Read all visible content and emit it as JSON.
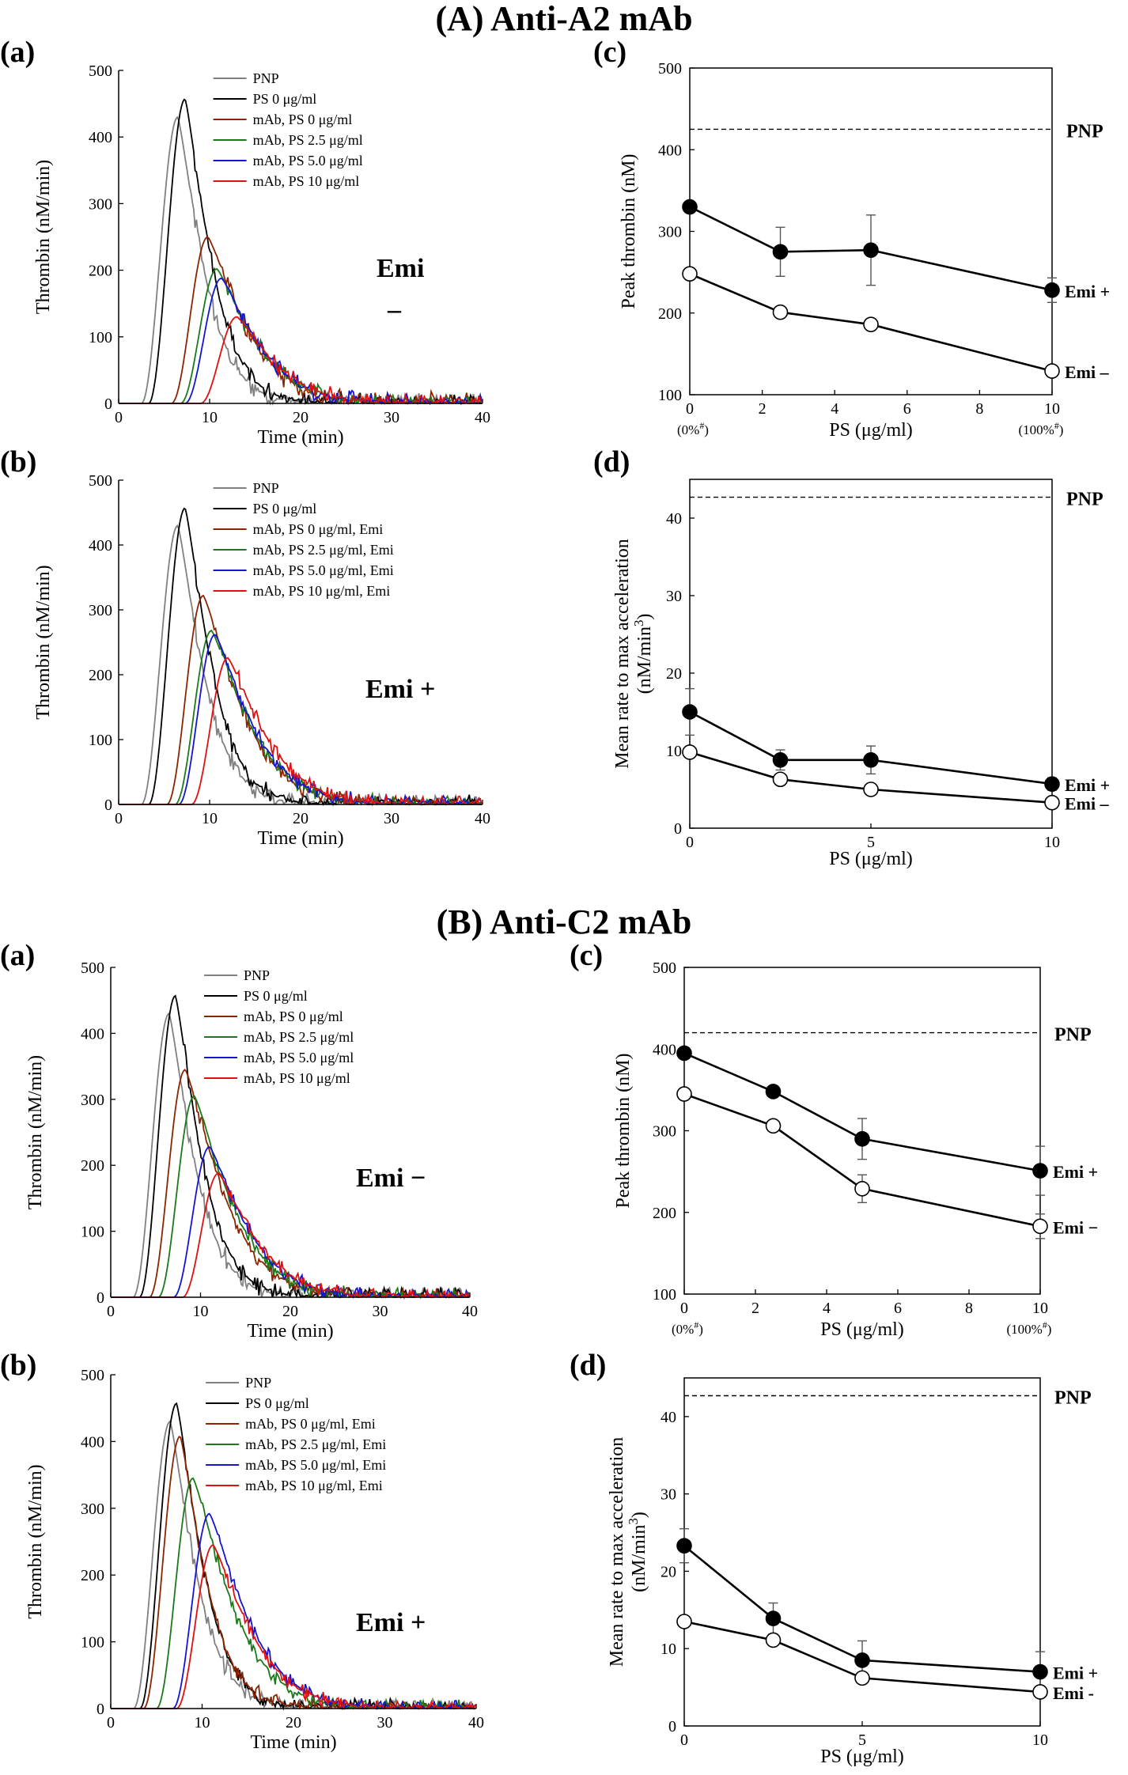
{
  "sections": [
    {
      "title": "(A) Anti-A2 mAb"
    },
    {
      "title": "(B) Anti-C2 mAb"
    }
  ],
  "chart_data": [
    {
      "id": "A-a",
      "panel_label": "(a)",
      "type": "line",
      "xlabel": "Time (min)",
      "ylabel": "Thrombin (nM/min)",
      "xlim": [
        0,
        40
      ],
      "ylim": [
        0,
        500
      ],
      "xticks": [
        0,
        10,
        20,
        30,
        40
      ],
      "yticks": [
        0,
        100,
        200,
        300,
        400,
        500
      ],
      "annotation": [
        "Emi",
        "–"
      ],
      "series": [
        {
          "name": "PNP",
          "color": "#808080",
          "tpeak": 6.5,
          "peak": 430,
          "noise": 18
        },
        {
          "name": "PS 0 μg/ml",
          "color": "#000000",
          "tpeak": 7.3,
          "peak": 457,
          "noise": 16
        },
        {
          "name": "mAb, PS 0 μg/ml",
          "color": "#8b2500",
          "tpeak": 9.8,
          "peak": 250,
          "noise": 18
        },
        {
          "name": "mAb, PS 2.5 μg/ml",
          "color": "#1a7a1a",
          "tpeak": 10.8,
          "peak": 202,
          "noise": 16
        },
        {
          "name": "mAb, PS 5.0 μg/ml",
          "color": "#1515d0",
          "tpeak": 11.3,
          "peak": 188,
          "noise": 15
        },
        {
          "name": "mAb, PS 10 μg/ml",
          "color": "#e01010",
          "tpeak": 13.0,
          "peak": 130,
          "noise": 14
        }
      ]
    },
    {
      "id": "A-b",
      "panel_label": "(b)",
      "type": "line",
      "xlabel": "Time (min)",
      "ylabel": "Thrombin (nM/min)",
      "xlim": [
        0,
        40
      ],
      "ylim": [
        0,
        500
      ],
      "xticks": [
        0,
        10,
        20,
        30,
        40
      ],
      "yticks": [
        0,
        100,
        200,
        300,
        400,
        500
      ],
      "annotation": [
        "Emi +"
      ],
      "series": [
        {
          "name": "PNP",
          "color": "#808080",
          "tpeak": 6.5,
          "peak": 430,
          "noise": 18
        },
        {
          "name": "PS 0 μg/ml",
          "color": "#000000",
          "tpeak": 7.3,
          "peak": 457,
          "noise": 16
        },
        {
          "name": "mAb, PS 0 μg/ml, Emi",
          "color": "#8b2500",
          "tpeak": 9.3,
          "peak": 322,
          "noise": 14
        },
        {
          "name": "mAb, PS 2.5 μg/ml, Emi",
          "color": "#1a7a1a",
          "tpeak": 10.2,
          "peak": 268,
          "noise": 14
        },
        {
          "name": "mAb, PS 5.0 μg/ml, Emi",
          "color": "#1515d0",
          "tpeak": 10.6,
          "peak": 262,
          "noise": 14
        },
        {
          "name": "mAb, PS 10 μg/ml, Emi",
          "color": "#e01010",
          "tpeak": 12.0,
          "peak": 226,
          "noise": 13
        }
      ]
    },
    {
      "id": "A-c",
      "panel_label": "(c)",
      "type": "line-errorbar",
      "xlabel": "PS (μg/ml)",
      "ylabel": "Peak thrombin (nM)",
      "xlim": [
        0,
        10
      ],
      "ylim": [
        100,
        500
      ],
      "xticks": [
        0,
        2,
        4,
        6,
        8,
        10
      ],
      "yticks": [
        100,
        200,
        300,
        400,
        500
      ],
      "x_notes": [
        "(0%#)",
        "(100%#)"
      ],
      "reference": {
        "label": "PNP",
        "value": 425
      },
      "series": [
        {
          "name": "Emi +",
          "filled": true,
          "x": [
            0,
            2.5,
            5,
            10
          ],
          "y": [
            330,
            275,
            277,
            228
          ],
          "err": [
            0,
            30,
            43,
            15
          ]
        },
        {
          "name": "Emi –",
          "filled": false,
          "x": [
            0,
            2.5,
            5,
            10
          ],
          "y": [
            248,
            201,
            186,
            129
          ],
          "err": [
            0,
            0,
            0,
            0
          ]
        }
      ]
    },
    {
      "id": "A-d",
      "panel_label": "(d)",
      "type": "line-errorbar",
      "xlabel": "PS (μg/ml)",
      "ylabel": "Mean rate to max acceleration",
      "ylabel2": "(nM/min3)",
      "xlim": [
        0,
        10
      ],
      "ylim": [
        0,
        45
      ],
      "xticks": [
        0,
        5,
        10
      ],
      "yticks": [
        0,
        10,
        20,
        30,
        40
      ],
      "reference": {
        "label": "PNP",
        "value": 42.7
      },
      "series": [
        {
          "name": "Emi +",
          "filled": true,
          "x": [
            0,
            2.5,
            5,
            10
          ],
          "y": [
            15.0,
            8.8,
            8.8,
            5.7
          ],
          "err": [
            3.0,
            1.3,
            1.8,
            0.8
          ]
        },
        {
          "name": "Emi –",
          "filled": false,
          "x": [
            0,
            2.5,
            5,
            10
          ],
          "y": [
            9.8,
            6.3,
            5.0,
            3.3
          ],
          "err": [
            0,
            0,
            0,
            0
          ]
        }
      ]
    },
    {
      "id": "B-a",
      "panel_label": "(a)",
      "type": "line",
      "xlabel": "Time (min)",
      "ylabel": "Thrombin (nM/min)",
      "xlim": [
        0,
        40
      ],
      "ylim": [
        0,
        500
      ],
      "xticks": [
        0,
        10,
        20,
        30,
        40
      ],
      "yticks": [
        0,
        100,
        200,
        300,
        400,
        500
      ],
      "annotation": [
        "Emi −"
      ],
      "series": [
        {
          "name": "PNP",
          "color": "#808080",
          "tpeak": 6.5,
          "peak": 430,
          "noise": 18
        },
        {
          "name": "PS 0 μg/ml",
          "color": "#000000",
          "tpeak": 7.2,
          "peak": 457,
          "noise": 16
        },
        {
          "name": "mAb, PS 0 μg/ml",
          "color": "#8b2500",
          "tpeak": 8.3,
          "peak": 345,
          "noise": 15
        },
        {
          "name": "mAb, PS 2.5 μg/ml",
          "color": "#1a7a1a",
          "tpeak": 9.3,
          "peak": 305,
          "noise": 14
        },
        {
          "name": "mAb, PS 5.0 μg/ml",
          "color": "#1515d0",
          "tpeak": 11.0,
          "peak": 228,
          "noise": 13
        },
        {
          "name": "mAb, PS 10 μg/ml",
          "color": "#e01010",
          "tpeak": 12.0,
          "peak": 188,
          "noise": 12
        }
      ]
    },
    {
      "id": "B-b",
      "panel_label": "(b)",
      "type": "line",
      "xlabel": "Time (min)",
      "ylabel": "Thrombin (nM/min)",
      "xlim": [
        0,
        40
      ],
      "ylim": [
        0,
        500
      ],
      "xticks": [
        0,
        10,
        20,
        30,
        40
      ],
      "yticks": [
        0,
        100,
        200,
        300,
        400,
        500
      ],
      "annotation": [
        "Emi +"
      ],
      "series": [
        {
          "name": "PNP",
          "color": "#808080",
          "tpeak": 6.5,
          "peak": 430,
          "noise": 18
        },
        {
          "name": "PS 0 μg/ml",
          "color": "#000000",
          "tpeak": 7.2,
          "peak": 457,
          "noise": 16
        },
        {
          "name": "mAb, PS 0 μg/ml, Emi",
          "color": "#8b2500",
          "tpeak": 7.6,
          "peak": 408,
          "noise": 15
        },
        {
          "name": "mAb, PS 2.5 μg/ml, Emi",
          "color": "#1a7a1a",
          "tpeak": 9.0,
          "peak": 345,
          "noise": 14
        },
        {
          "name": "mAb, PS 5.0 μg/ml, Emi",
          "color": "#1515d0",
          "tpeak": 10.8,
          "peak": 292,
          "noise": 13
        },
        {
          "name": "mAb, PS 10 μg/ml, Emi",
          "color": "#e01010",
          "tpeak": 11.2,
          "peak": 245,
          "noise": 12
        }
      ]
    },
    {
      "id": "B-c",
      "panel_label": "(c)",
      "type": "line-errorbar",
      "xlabel": "PS (μg/ml)",
      "ylabel": "Peak thrombin (nM)",
      "xlim": [
        0,
        10
      ],
      "ylim": [
        100,
        500
      ],
      "xticks": [
        0,
        2,
        4,
        6,
        8,
        10
      ],
      "yticks": [
        100,
        200,
        300,
        400,
        500
      ],
      "x_notes": [
        "(0%#)",
        "(100%#)"
      ],
      "reference": {
        "label": "PNP",
        "value": 420
      },
      "series": [
        {
          "name": "Emi +",
          "filled": true,
          "x": [
            0,
            2.5,
            5,
            10
          ],
          "y": [
            395,
            348,
            290,
            251
          ],
          "err": [
            0,
            0,
            25,
            30
          ]
        },
        {
          "name": "Emi −",
          "filled": false,
          "x": [
            0,
            2.5,
            5,
            10
          ],
          "y": [
            345,
            306,
            229,
            183
          ],
          "err": [
            0,
            0,
            17,
            15
          ]
        }
      ]
    },
    {
      "id": "B-d",
      "panel_label": "(d)",
      "type": "line-errorbar",
      "xlabel": "PS (μg/ml)",
      "ylabel": "Mean rate to max acceleration",
      "ylabel2": "(nM/min3)",
      "xlim": [
        0,
        10
      ],
      "ylim": [
        0,
        45
      ],
      "xticks": [
        0,
        5,
        10
      ],
      "yticks": [
        0,
        10,
        20,
        30,
        40
      ],
      "reference": {
        "label": "PNP",
        "value": 42.7
      },
      "series": [
        {
          "name": "Emi +",
          "filled": true,
          "x": [
            0,
            2.5,
            5,
            10
          ],
          "y": [
            23.3,
            13.9,
            8.5,
            7.0
          ],
          "err": [
            2.2,
            2.0,
            2.5,
            2.6
          ]
        },
        {
          "name": "Emi -",
          "filled": false,
          "x": [
            0,
            2.5,
            5,
            10
          ],
          "y": [
            13.5,
            11.1,
            6.2,
            4.4
          ],
          "err": [
            0,
            0,
            0,
            0
          ]
        }
      ]
    }
  ]
}
